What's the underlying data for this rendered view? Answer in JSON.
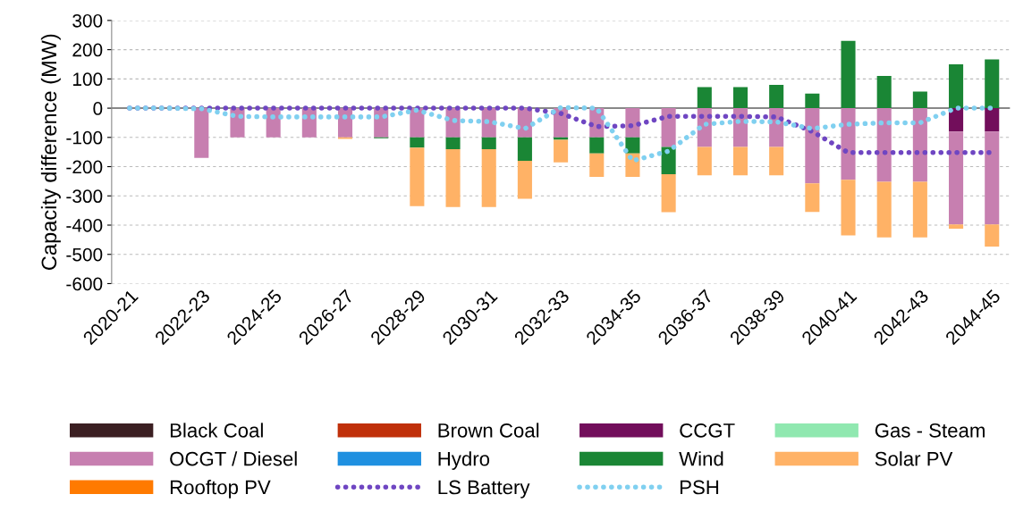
{
  "chart_data": {
    "type": "bar",
    "stacked": true,
    "ylabel": "Capacity difference (MW)",
    "categories": [
      "2020-21",
      null,
      "2022-23",
      null,
      "2024-25",
      null,
      "2026-27",
      null,
      "2028-29",
      null,
      "2030-31",
      null,
      "2032-33",
      null,
      "2034-35",
      null,
      "2036-37",
      null,
      "2038-39",
      null,
      "2040-41",
      null,
      "2042-43",
      null,
      "2044-45"
    ],
    "ylim": [
      -600,
      300
    ],
    "yticks": [
      -600,
      -500,
      -400,
      -300,
      -200,
      -100,
      0,
      100,
      200,
      300
    ],
    "grid": "y",
    "legend": "bottom",
    "series": [
      {
        "name": "Black Coal",
        "color": "#3b1f22",
        "values": [
          null,
          null,
          null,
          null,
          null,
          null,
          null,
          null,
          null,
          null,
          null,
          null,
          null,
          null,
          null,
          null,
          null,
          null,
          null,
          null,
          null,
          null,
          null,
          null,
          null
        ]
      },
      {
        "name": "Brown Coal",
        "color": "#c0300a",
        "values": [
          null,
          null,
          null,
          null,
          null,
          null,
          null,
          null,
          null,
          null,
          null,
          null,
          null,
          null,
          null,
          null,
          null,
          null,
          null,
          null,
          null,
          null,
          null,
          null,
          null
        ]
      },
      {
        "name": "CCGT",
        "color": "#720e5b",
        "values": [
          null,
          null,
          null,
          null,
          null,
          null,
          null,
          null,
          null,
          null,
          null,
          null,
          null,
          null,
          null,
          null,
          null,
          null,
          null,
          null,
          null,
          null,
          null,
          -80,
          -80
        ]
      },
      {
        "name": "Gas - Steam",
        "color": "#90e8b0",
        "values": [
          null,
          null,
          null,
          null,
          null,
          null,
          null,
          null,
          null,
          null,
          null,
          null,
          null,
          null,
          null,
          null,
          null,
          null,
          null,
          null,
          null,
          null,
          null,
          null,
          null
        ]
      },
      {
        "name": "OCGT / Diesel",
        "color": "#c77fb0",
        "values": [
          null,
          null,
          -170,
          -100,
          -100,
          -100,
          -100,
          -100,
          -100,
          -100,
          -100,
          -100,
          -100,
          -100,
          -100,
          -133,
          -133,
          -133,
          -133,
          -257,
          -245,
          -252,
          -252,
          -318,
          -318
        ]
      },
      {
        "name": "Hydro",
        "color": "#1f90e0",
        "values": [
          null,
          null,
          null,
          null,
          null,
          null,
          null,
          null,
          null,
          null,
          null,
          null,
          null,
          null,
          null,
          null,
          null,
          null,
          null,
          null,
          null,
          null,
          null,
          null,
          null
        ]
      },
      {
        "name": "Wind",
        "color": "#1a8635",
        "values": [
          null,
          null,
          null,
          null,
          null,
          null,
          null,
          -3,
          -35,
          -40,
          -40,
          -80,
          -8,
          -55,
          -55,
          -93,
          72,
          72,
          80,
          50,
          230,
          110,
          57,
          150,
          167
        ]
      },
      {
        "name": "Solar PV",
        "color": "#ffb266",
        "values": [
          null,
          null,
          null,
          null,
          null,
          null,
          -5,
          null,
          -200,
          -198,
          -198,
          -130,
          -77,
          -80,
          -80,
          -130,
          -97,
          -97,
          -97,
          -98,
          -190,
          -190,
          -190,
          -14,
          -75
        ]
      },
      {
        "name": "Rooftop PV",
        "color": "#ff7a00",
        "values": [
          null,
          null,
          null,
          null,
          null,
          null,
          null,
          null,
          null,
          null,
          null,
          null,
          null,
          null,
          null,
          null,
          null,
          null,
          null,
          null,
          null,
          null,
          null,
          null,
          null
        ]
      },
      {
        "name": "LS Battery",
        "color": "#6f46c2",
        "type": "line",
        "line_style": "dotted",
        "values": [
          0,
          0,
          0,
          0,
          0,
          0,
          0,
          0,
          0,
          0,
          0,
          0,
          -18,
          -63,
          -60,
          -28,
          -28,
          -28,
          -30,
          -80,
          -152,
          -152,
          -152,
          -152,
          -152
        ]
      },
      {
        "name": "PSH",
        "color": "#80d0f0",
        "type": "line",
        "line_style": "dotted",
        "values": [
          0,
          0,
          -2,
          -28,
          -30,
          -30,
          -30,
          -30,
          -7,
          -42,
          -46,
          -70,
          2,
          0,
          -180,
          -147,
          -55,
          -45,
          -47,
          -70,
          -55,
          -50,
          -50,
          0,
          0
        ]
      }
    ]
  }
}
